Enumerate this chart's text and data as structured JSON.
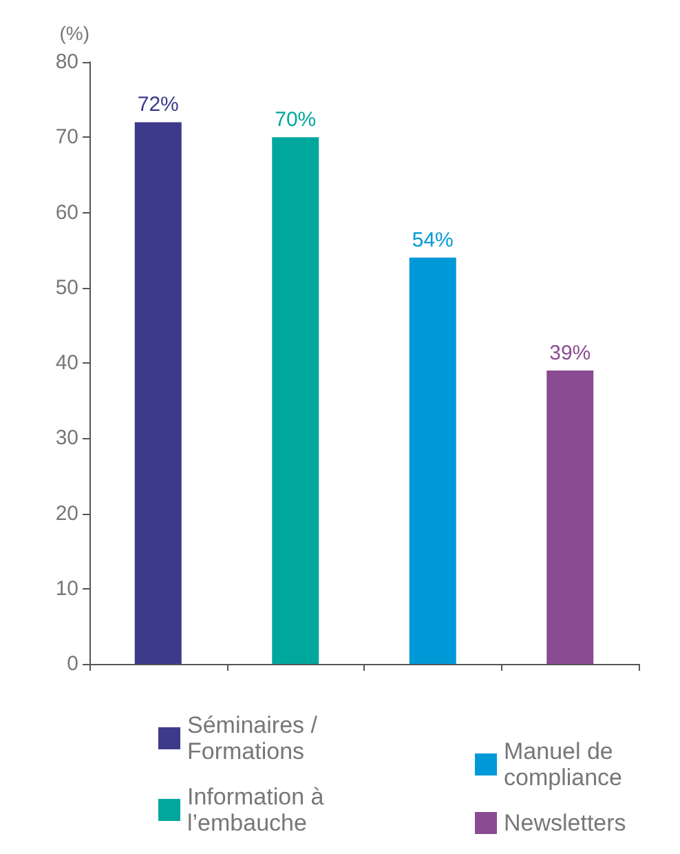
{
  "chart_data": {
    "type": "bar",
    "ylabel": "(%)",
    "categories": [
      null,
      null,
      null,
      null
    ],
    "series": [
      {
        "name": "Séminaires / Formations",
        "color": "#3d3a8c",
        "values": [
          72,
          null,
          null,
          null
        ],
        "value_labels": [
          "72%",
          null,
          null,
          null
        ]
      },
      {
        "name": "Information à l’embauche",
        "color": "#00a79d",
        "values": [
          null,
          70,
          null,
          null
        ],
        "value_labels": [
          null,
          "70%",
          null,
          null
        ]
      },
      {
        "name": "Manuel de compliance",
        "color": "#0099d8",
        "values": [
          null,
          null,
          54,
          null
        ],
        "value_labels": [
          null,
          null,
          "54%",
          null
        ]
      },
      {
        "name": "Newsletters",
        "color": "#8b4b92",
        "values": [
          null,
          null,
          null,
          39
        ],
        "value_labels": [
          null,
          null,
          null,
          "39%"
        ]
      }
    ],
    "ylim": [
      0,
      80
    ],
    "yticks": [
      0,
      10,
      20,
      30,
      40,
      50,
      60,
      70,
      80
    ],
    "grid": false,
    "legend": "bottom"
  }
}
